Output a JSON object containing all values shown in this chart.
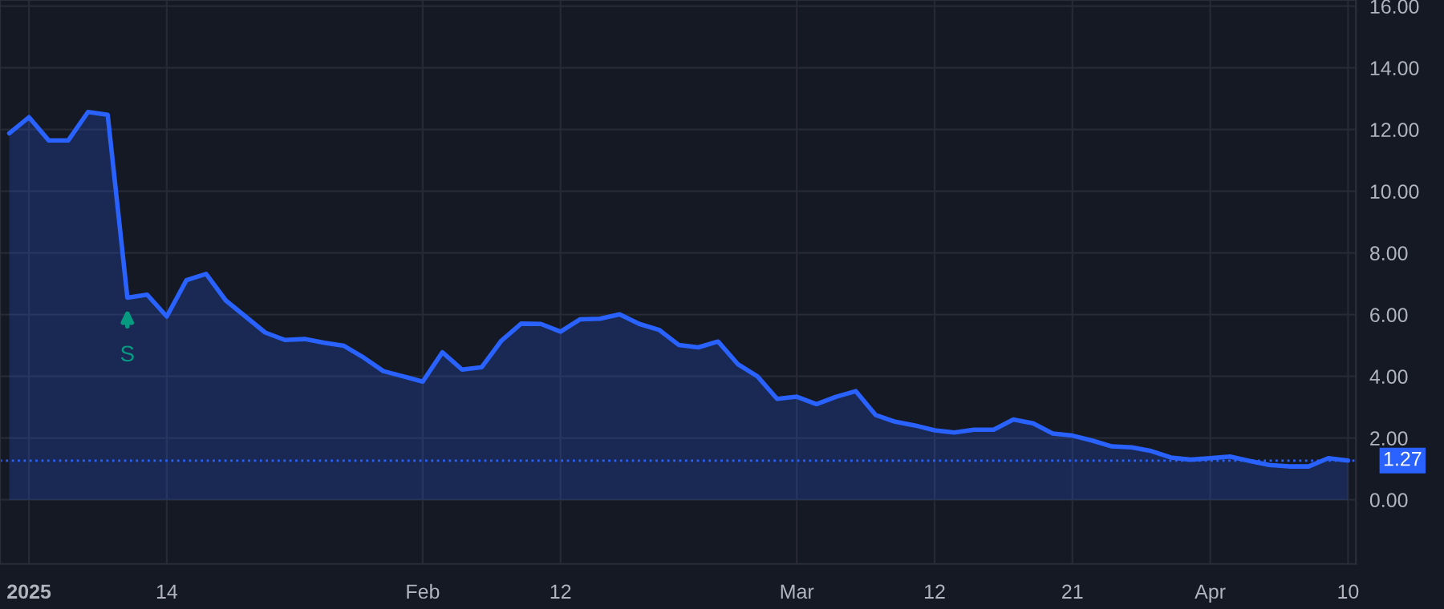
{
  "chart_data": {
    "type": "area",
    "categories": [
      null,
      "2025",
      null,
      null,
      null,
      null,
      null,
      null,
      "14",
      null,
      null,
      null,
      null,
      null,
      null,
      null,
      null,
      null,
      null,
      null,
      null,
      "Feb",
      null,
      null,
      null,
      null,
      null,
      null,
      "12",
      null,
      null,
      null,
      null,
      null,
      null,
      null,
      null,
      null,
      null,
      null,
      "Mar",
      null,
      null,
      null,
      null,
      null,
      null,
      "12",
      null,
      null,
      null,
      null,
      null,
      null,
      "21",
      null,
      null,
      null,
      null,
      null,
      null,
      "Apr",
      null,
      null,
      null,
      null,
      null,
      null,
      "10"
    ],
    "series": [
      {
        "color": "#2962ff",
        "values": [
          11.88,
          12.4,
          11.65,
          11.65,
          12.57,
          12.48,
          6.55,
          6.65,
          5.94,
          7.12,
          7.32,
          6.46,
          5.94,
          5.42,
          5.18,
          5.21,
          5.09,
          4.99,
          4.61,
          4.17,
          4.0,
          3.83,
          4.78,
          4.22,
          4.3,
          5.16,
          5.71,
          5.7,
          5.45,
          5.85,
          5.87,
          6.01,
          5.7,
          5.51,
          5.02,
          4.94,
          5.13,
          4.4,
          4.0,
          3.27,
          3.34,
          3.1,
          3.34,
          3.52,
          2.75,
          2.53,
          2.41,
          2.25,
          2.18,
          2.27,
          2.27,
          2.6,
          2.48,
          2.15,
          2.08,
          1.92,
          1.73,
          1.7,
          1.58,
          1.37,
          1.3,
          1.35,
          1.4,
          1.26,
          1.13,
          1.08,
          1.08,
          1.35,
          1.27
        ]
      }
    ],
    "ylim": [
      -2.08,
      16.2
    ],
    "yticks": [
      {
        "value": 0,
        "label": "0.00"
      },
      {
        "value": 2,
        "label": "2.00"
      },
      {
        "value": 4,
        "label": "4.00"
      },
      {
        "value": 6,
        "label": "6.00"
      },
      {
        "value": 8,
        "label": "8.00"
      },
      {
        "value": 10,
        "label": "10.00"
      },
      {
        "value": 12,
        "label": "12.00"
      },
      {
        "value": 14,
        "label": "14.00"
      },
      {
        "value": 16,
        "label": "16.00"
      }
    ],
    "ref_lines": [
      {
        "axis": "y",
        "value": 1.27,
        "label": "1.27",
        "color": "#2962ff",
        "line_style": "dotted"
      }
    ],
    "annotations": [
      {
        "text": "S",
        "y": 6.55
      }
    ],
    "grid": true
  }
}
